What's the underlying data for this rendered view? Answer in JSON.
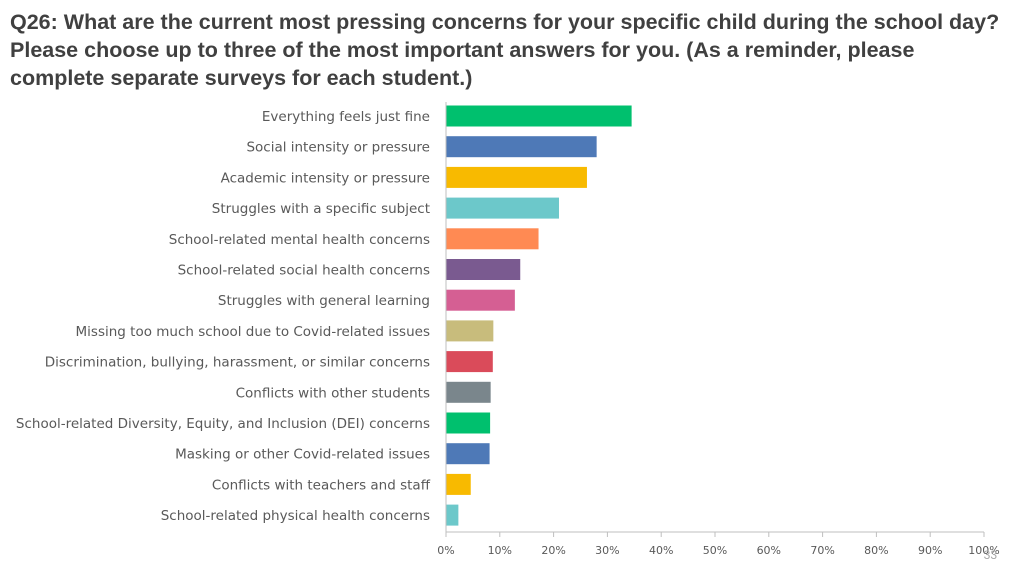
{
  "title": "Q26: What are the current most pressing concerns for your specific child during the school day? Please choose up to three of the most important answers for you. (As a reminder, please complete separate surveys for each student.)",
  "page_number": "33",
  "chart_data": {
    "type": "bar",
    "orientation": "horizontal",
    "categories": [
      "Everything feels just fine",
      "Social intensity or pressure",
      "Academic intensity or pressure",
      "Struggles with a specific subject",
      "School-related mental health concerns",
      "School-related social health concerns",
      "Struggles with general learning",
      "Missing too much school due to Covid-related issues",
      "Discrimination, bullying, harassment, or similar concerns",
      "Conflicts with other students",
      "School-related Diversity, Equity, and Inclusion (DEI) concerns",
      "Masking or other Covid-related issues",
      "Conflicts with teachers and staff",
      "School-related physical health concerns"
    ],
    "values": [
      34.5,
      28,
      26.2,
      21,
      17.2,
      13.8,
      12.8,
      8.8,
      8.7,
      8.3,
      8.2,
      8.1,
      4.6,
      2.3
    ],
    "colors": [
      "#00C06E",
      "#4E79B7",
      "#F8BA00",
      "#6CC8CA",
      "#FF8A53",
      "#7A5A90",
      "#D55F93",
      "#C8BC7C",
      "#DA4B5A",
      "#7A868C",
      "#00C06E",
      "#4E79B7",
      "#F8BA00",
      "#6CC8CA"
    ],
    "xlim": [
      0,
      100
    ],
    "x_ticks": [
      "0%",
      "10%",
      "20%",
      "30%",
      "40%",
      "50%",
      "60%",
      "70%",
      "80%",
      "90%",
      "100%"
    ],
    "grid": false
  }
}
